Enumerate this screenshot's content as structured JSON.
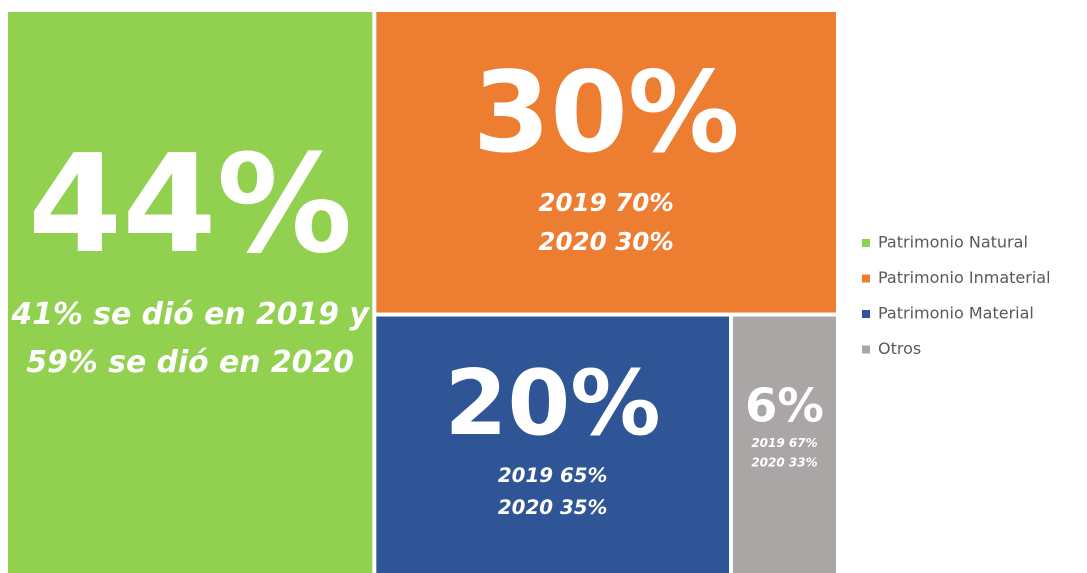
{
  "chart_data": {
    "type": "treemap",
    "categories": [
      "Patrimonio Natural",
      "Patrimonio Inmaterial",
      "Patrimonio Material",
      "Otros"
    ],
    "values": [
      44,
      30,
      20,
      6
    ],
    "value_labels": [
      "44%",
      "30%",
      "20%",
      "6%"
    ],
    "colors": [
      "#92d050",
      "#ed7d31",
      "#2f5597",
      "#aaa6a6"
    ],
    "notes": [
      [
        "41% se dió en 2019 y",
        "59% se dió en 2020"
      ],
      [
        "2019 70%",
        "2020 30%"
      ],
      [
        "2019 65%",
        "2020 35%"
      ],
      [
        "2019 67%",
        "2020 33%"
      ]
    ],
    "legend": "right"
  }
}
